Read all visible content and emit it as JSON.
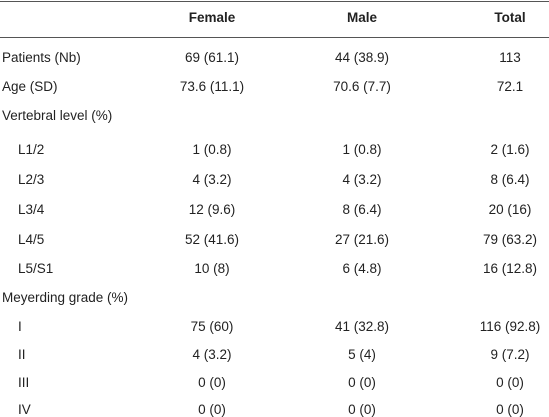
{
  "table": {
    "columns": [
      "Female",
      "Male",
      "Total"
    ],
    "rows": [
      {
        "label": "Patients (Nb)",
        "cells": [
          "69 (61.1)",
          "44 (38.9)",
          "113"
        ]
      },
      {
        "label": "Age (SD)",
        "cells": [
          "73.6 (11.1)",
          "70.6 (7.7)",
          "72.1"
        ]
      },
      {
        "label": "Vertebral level (%)",
        "rows": [
          {
            "label": "L1/2",
            "cells": [
              "1 (0.8)",
              "1 (0.8)",
              "2 (1.6)"
            ]
          },
          {
            "label": "L2/3",
            "cells": [
              "4 (3.2)",
              "4 (3.2)",
              "8 (6.4)"
            ]
          },
          {
            "label": "L3/4",
            "cells": [
              "12 (9.6)",
              "8 (6.4)",
              "20 (16)"
            ]
          },
          {
            "label": "L4/5",
            "cells": [
              "52 (41.6)",
              "27 (21.6)",
              "79 (63.2)"
            ]
          },
          {
            "label": "L5/S1",
            "cells": [
              "10 (8)",
              "6 (4.8)",
              "16 (12.8)"
            ]
          }
        ]
      },
      {
        "label": "Meyerding grade (%)",
        "rows": [
          {
            "label": "I",
            "cells": [
              "75 (60)",
              "41 (32.8)",
              "116 (92.8)"
            ]
          },
          {
            "label": "II",
            "cells": [
              "4 (3.2)",
              "5 (4)",
              "9 (7.2)"
            ]
          },
          {
            "label": "III",
            "cells": [
              "0 (0)",
              "0 (0)",
              "0 (0)"
            ]
          },
          {
            "label": "IV",
            "cells": [
              "0 (0)",
              "0 (0)",
              "0 (0)"
            ]
          }
        ]
      }
    ]
  }
}
